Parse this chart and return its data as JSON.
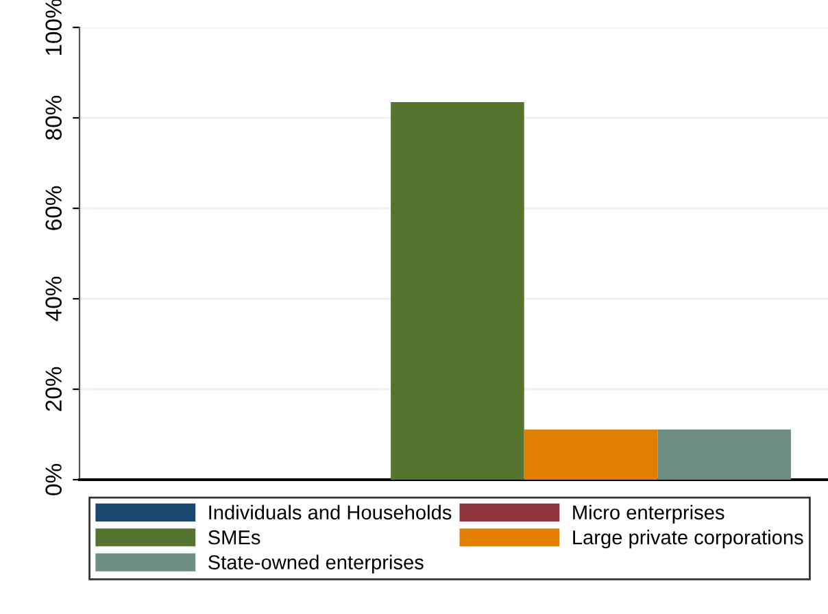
{
  "chart_data": {
    "type": "bar",
    "categories": [
      null
    ],
    "series": [
      {
        "name": "Individuals and Households",
        "color": "#1a476f",
        "values": [
          0
        ]
      },
      {
        "name": "Micro enterprises",
        "color": "#90353b",
        "values": [
          0
        ]
      },
      {
        "name": "SMEs",
        "color": "#55752f",
        "values": [
          83.5
        ]
      },
      {
        "name": "Large private corporations",
        "color": "#e37e00",
        "values": [
          11.1
        ]
      },
      {
        "name": "State-owned enterprises",
        "color": "#6e8e84",
        "values": [
          11.1
        ]
      }
    ],
    "ylim": [
      0,
      100
    ],
    "yticks": [
      {
        "value": 0,
        "label": "0%"
      },
      {
        "value": 20,
        "label": "20%"
      },
      {
        "value": 40,
        "label": "40%"
      },
      {
        "value": 60,
        "label": "60%"
      },
      {
        "value": 80,
        "label": "80%"
      },
      {
        "value": 100,
        "label": "100%"
      }
    ],
    "grid": "y",
    "legend": "bottom",
    "tick_labels": "y"
  }
}
